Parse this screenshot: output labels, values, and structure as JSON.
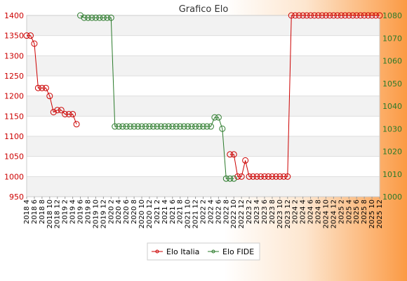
{
  "chart_data": {
    "type": "line",
    "title": "Grafico Elo",
    "grid": true,
    "legend_position": "bottom-center",
    "y_left": {
      "ylim": [
        950,
        1400
      ],
      "ticks": [
        950,
        1000,
        1050,
        1100,
        1150,
        1200,
        1250,
        1300,
        1350,
        1400
      ],
      "color": "#cc0000"
    },
    "y_right": {
      "ylim": [
        1000,
        1080
      ],
      "ticks": [
        1000,
        1010,
        1020,
        1030,
        1040,
        1050,
        1060,
        1070,
        1080
      ],
      "color": "#2a7a2a"
    },
    "x": [
      "2018 4",
      "2018 5",
      "2018 6",
      "2018 7",
      "2018 8",
      "2018 9",
      "2018 10",
      "2018 11",
      "2018 12",
      "2019 1",
      "2019 2",
      "2019 3",
      "2019 4",
      "2019 5",
      "2019 6",
      "2019 7",
      "2019 8",
      "2019 9",
      "2019 10",
      "2019 11",
      "2019 12",
      "2020 1",
      "2020 2",
      "2020 3",
      "2020 4",
      "2020 5",
      "2020 6",
      "2020 7",
      "2020 8",
      "2020 9",
      "2020 10",
      "2020 11",
      "2020 12",
      "2021 1",
      "2021 2",
      "2021 3",
      "2021 4",
      "2021 5",
      "2021 6",
      "2021 7",
      "2021 8",
      "2021 9",
      "2021 10",
      "2021 11",
      "2021 12",
      "2022 1",
      "2022 2",
      "2022 3",
      "2022 4",
      "2022 5",
      "2022 6",
      "2022 7",
      "2022 8",
      "2022 9",
      "2022 10",
      "2022 11",
      "2022 12",
      "2023 1",
      "2023 2",
      "2023 3",
      "2023 4",
      "2023 5",
      "2023 6",
      "2023 7",
      "2023 8",
      "2023 9",
      "2023 10",
      "2023 11",
      "2023 12",
      "2024 1",
      "2024 2",
      "2024 3",
      "2024 4",
      "2024 5",
      "2024 6",
      "2024 7",
      "2024 8",
      "2024 9",
      "2024 10",
      "2024 11",
      "2024 12",
      "2025 1",
      "2025 2",
      "2025 3",
      "2025 4",
      "2025 5",
      "2025 6",
      "2025 7",
      "2025 8",
      "2025 9",
      "2025 10",
      "2025 11",
      "2025 12"
    ],
    "xtick_labels": [
      "2018 4",
      "2018 6",
      "2018 8",
      "2018 10",
      "2018 12",
      "2019 2",
      "2019 4",
      "2019 6",
      "2019 8",
      "2019 10",
      "2019 12",
      "2020 2",
      "2020 4",
      "2020 6",
      "2020 8",
      "2020 10",
      "2020 12",
      "2021 2",
      "2021 4",
      "2021 6",
      "2021 8",
      "2021 10",
      "2021 12",
      "2022 2",
      "2022 4",
      "2022 6",
      "2022 8",
      "2022 10",
      "2022 12",
      "2023 2",
      "2023 4",
      "2023 6",
      "2023 8",
      "2023 10",
      "2023 12",
      "2024 2",
      "2024 4",
      "2024 6",
      "2024 8",
      "2024 10",
      "2024 12",
      "2025 2",
      "2025 4",
      "2025 6",
      "2025 8",
      "2025 10",
      "2025 12"
    ],
    "series": [
      {
        "name": "Elo Italia",
        "axis": "left",
        "color": "#cc0000",
        "values": [
          1350,
          1350,
          1330,
          1220,
          1220,
          1220,
          1200,
          1160,
          1165,
          1165,
          1155,
          1155,
          1155,
          1130,
          null,
          null,
          null,
          null,
          null,
          null,
          null,
          null,
          null,
          null,
          null,
          null,
          null,
          null,
          null,
          null,
          null,
          null,
          null,
          null,
          null,
          null,
          null,
          null,
          null,
          null,
          null,
          null,
          null,
          null,
          null,
          null,
          null,
          null,
          null,
          null,
          null,
          null,
          null,
          1055,
          1055,
          1000,
          1000,
          1040,
          1000,
          1000,
          1000,
          1000,
          1000,
          1000,
          1000,
          1000,
          1000,
          1000,
          1000,
          1400,
          1400,
          1400,
          1400,
          1400,
          1400,
          1400,
          1400,
          1400,
          1400,
          1400,
          1400,
          1400,
          1400,
          1400,
          1400,
          1400,
          1400,
          1400,
          1400,
          1400,
          1400,
          1400,
          1400
        ]
      },
      {
        "name": "Elo FIDE",
        "axis": "right",
        "color": "#2a7a2a",
        "values": [
          null,
          null,
          null,
          null,
          null,
          null,
          null,
          null,
          null,
          null,
          null,
          null,
          null,
          null,
          1080,
          1079,
          1079,
          1079,
          1079,
          1079,
          1079,
          1079,
          1079,
          1031,
          1031,
          1031,
          1031,
          1031,
          1031,
          1031,
          1031,
          1031,
          1031,
          1031,
          1031,
          1031,
          1031,
          1031,
          1031,
          1031,
          1031,
          1031,
          1031,
          1031,
          1031,
          1031,
          1031,
          1031,
          1031,
          1035,
          1035,
          1030,
          1008,
          1008,
          1008,
          null,
          null,
          null,
          null,
          null,
          null,
          null,
          null,
          null,
          null,
          null,
          null,
          null,
          null,
          null,
          null,
          null,
          null,
          null,
          null,
          null,
          null,
          null,
          null,
          null,
          null,
          null,
          null,
          null,
          null,
          null,
          null,
          null,
          null,
          null,
          null,
          null,
          null
        ]
      }
    ]
  }
}
